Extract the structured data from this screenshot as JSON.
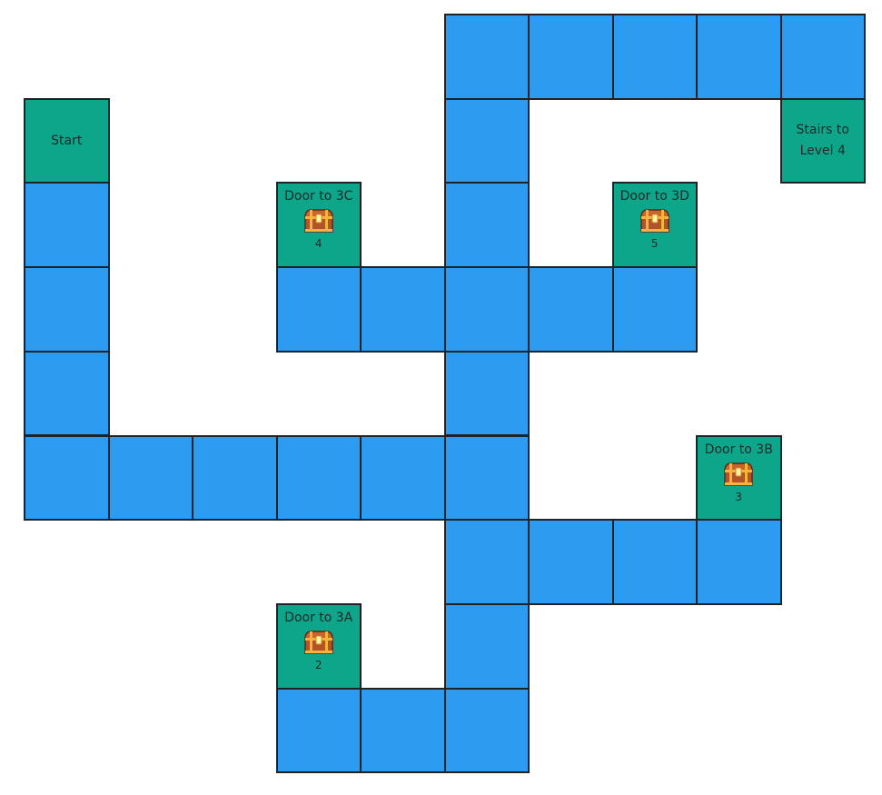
{
  "map": {
    "rows": [
      ".....BBBBB",
      "S....B...T",
      "B..C.B.D..",
      "B..BBBBB..",
      "B....B....",
      "BBBBBB..E.",
      ".....BBBB.",
      "...A.B....",
      "...BBB...."
    ],
    "tiles": {
      "S": {
        "label": "Start",
        "type": "start"
      },
      "T": {
        "label": "Stairs to Level 4",
        "type": "stairs"
      },
      "C": {
        "label": "Door to 3C",
        "type": "door",
        "icon": "treasure-chest-icon",
        "count": "4"
      },
      "D": {
        "label": "Door to 3D",
        "type": "door",
        "icon": "treasure-chest-icon",
        "count": "5"
      },
      "E": {
        "label": "Door to 3B",
        "type": "door",
        "icon": "treasure-chest-icon",
        "count": "3"
      },
      "A": {
        "label": "Door to 3A",
        "type": "door",
        "icon": "treasure-chest-icon",
        "count": "2"
      }
    },
    "colors": {
      "path": "#2d9bf0",
      "special": "#0ea68a",
      "border": "#1e2328"
    }
  }
}
